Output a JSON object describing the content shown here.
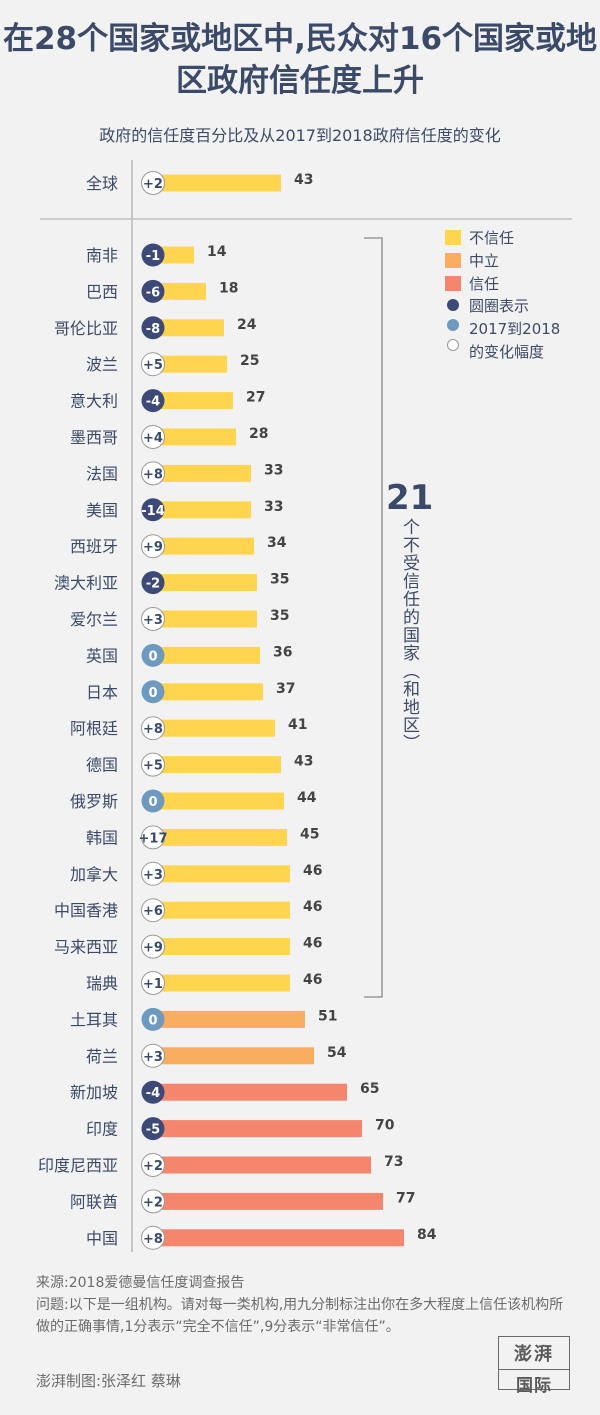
{
  "title": "在28个国家或地区中,民众对16个国家或地区政府信任度上升",
  "subtitle": "政府的信任度百分比及从2017到2018政府信任度的变化",
  "legend": {
    "distrust": "不信任",
    "neutral": "中立",
    "trust": "信任",
    "circle_lines": [
      "圆圈表示",
      "2017到2018",
      "的变化幅度"
    ]
  },
  "bracket": {
    "number": "21",
    "text": "个不受信任的国家（和地区）"
  },
  "footer": {
    "source": "来源:2018爱德曼信任度调查报告",
    "question": "问题:以下是一组机构。请对每一类机构,用九分制标注出你在多大程度上信任该机构所做的正确事情,1分表示“完全不信任”,9分表示“非常信任”。",
    "credit": "澎湃制图:张泽红 蔡琳"
  },
  "logo": {
    "line1": "澎湃",
    "line2": "国际"
  },
  "colors": {
    "distrust": "#ffd54f",
    "neutral": "#f9ad5e",
    "trust": "#f4866e",
    "decline": "#3d4a78",
    "flat": "#6e9ac0",
    "increase": "#ffffff",
    "text": "#3b4a68"
  },
  "chart_data": {
    "type": "bar",
    "orientation": "horizontal",
    "xlim": [
      0,
      100
    ],
    "global": {
      "label": "全球",
      "value": 43,
      "change": "+2",
      "category": "distrust"
    },
    "rows": [
      {
        "label": "南非",
        "value": 14,
        "change": "-1",
        "category": "distrust"
      },
      {
        "label": "巴西",
        "value": 18,
        "change": "-6",
        "category": "distrust"
      },
      {
        "label": "哥伦比亚",
        "value": 24,
        "change": "-8",
        "category": "distrust"
      },
      {
        "label": "波兰",
        "value": 25,
        "change": "+5",
        "category": "distrust"
      },
      {
        "label": "意大利",
        "value": 27,
        "change": "-4",
        "category": "distrust"
      },
      {
        "label": "墨西哥",
        "value": 28,
        "change": "+4",
        "category": "distrust"
      },
      {
        "label": "法国",
        "value": 33,
        "change": "+8",
        "category": "distrust"
      },
      {
        "label": "美国",
        "value": 33,
        "change": "-14",
        "category": "distrust"
      },
      {
        "label": "西班牙",
        "value": 34,
        "change": "+9",
        "category": "distrust"
      },
      {
        "label": "澳大利亚",
        "value": 35,
        "change": "-2",
        "category": "distrust"
      },
      {
        "label": "爱尔兰",
        "value": 35,
        "change": "+3",
        "category": "distrust"
      },
      {
        "label": "英国",
        "value": 36,
        "change": "0",
        "category": "distrust"
      },
      {
        "label": "日本",
        "value": 37,
        "change": "0",
        "category": "distrust"
      },
      {
        "label": "阿根廷",
        "value": 41,
        "change": "+8",
        "category": "distrust"
      },
      {
        "label": "德国",
        "value": 43,
        "change": "+5",
        "category": "distrust"
      },
      {
        "label": "俄罗斯",
        "value": 44,
        "change": "0",
        "category": "distrust"
      },
      {
        "label": "韩国",
        "value": 45,
        "change": "+17",
        "category": "distrust"
      },
      {
        "label": "加拿大",
        "value": 46,
        "change": "+3",
        "category": "distrust"
      },
      {
        "label": "中国香港",
        "value": 46,
        "change": "+6",
        "category": "distrust"
      },
      {
        "label": "马来西亚",
        "value": 46,
        "change": "+9",
        "category": "distrust"
      },
      {
        "label": "瑞典",
        "value": 46,
        "change": "+1",
        "category": "distrust"
      },
      {
        "label": "土耳其",
        "value": 51,
        "change": "0",
        "category": "neutral"
      },
      {
        "label": "荷兰",
        "value": 54,
        "change": "+3",
        "category": "neutral"
      },
      {
        "label": "新加坡",
        "value": 65,
        "change": "-4",
        "category": "trust"
      },
      {
        "label": "印度",
        "value": 70,
        "change": "-5",
        "category": "trust"
      },
      {
        "label": "印度尼西亚",
        "value": 73,
        "change": "+2",
        "category": "trust"
      },
      {
        "label": "阿联酋",
        "value": 77,
        "change": "+2",
        "category": "trust"
      },
      {
        "label": "中国",
        "value": 84,
        "change": "+8",
        "category": "trust"
      }
    ]
  }
}
